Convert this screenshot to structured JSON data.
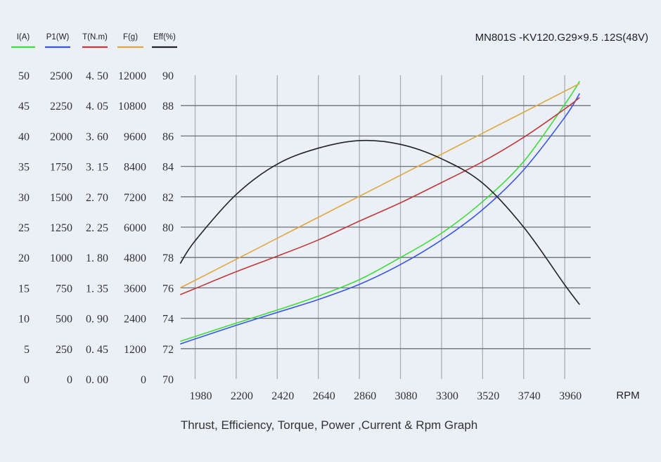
{
  "chart_data": {
    "type": "line",
    "title": "MN801S -KV120.G29×9.5 .12S(48V)",
    "subtitle": "Thrust, Efficiency, Torque, Power ,Current & Rpm Graph",
    "xlabel": "RPM",
    "x_ticks": [
      "1980",
      "2200",
      "2420",
      "2640",
      "2860",
      "3080",
      "3300",
      "3520",
      "3740",
      "3960"
    ],
    "grid": true,
    "legend_position": "top-left",
    "axes": [
      {
        "key": "I",
        "label": "I(A)",
        "range": [
          0,
          50
        ],
        "ticks": [
          "50",
          "45",
          "40",
          "35",
          "30",
          "25",
          "20",
          "15",
          "10",
          "5",
          "0"
        ]
      },
      {
        "key": "P",
        "label": "P1(W)",
        "range": [
          0,
          2500
        ],
        "ticks": [
          "2500",
          "2250",
          "2000",
          "1750",
          "1500",
          "1250",
          "1000",
          "750",
          "500",
          "250",
          "0"
        ]
      },
      {
        "key": "T",
        "label": "T(N.m)",
        "range": [
          0,
          4.5
        ],
        "ticks": [
          "4. 50",
          "4. 05",
          "3. 60",
          "3. 15",
          "2. 70",
          "2. 25",
          "1. 80",
          "1. 35",
          "0. 90",
          "0. 45",
          "0. 00"
        ]
      },
      {
        "key": "F",
        "label": "F(g)",
        "range": [
          0,
          12000
        ],
        "ticks": [
          "12000",
          "10800",
          "9600",
          "8400",
          "7200",
          "6000",
          "4800",
          "3600",
          "2400",
          "1200",
          "0"
        ]
      },
      {
        "key": "Eff",
        "label": "Eff(%)",
        "range": [
          70,
          90
        ],
        "ticks": [
          "90",
          "88",
          "86",
          "84",
          "82",
          "80",
          "78",
          "76",
          "74",
          "72",
          "70"
        ]
      }
    ],
    "x": [
      1900,
      1980,
      2200,
      2420,
      2640,
      2860,
      3080,
      3300,
      3520,
      3740,
      3960,
      4040
    ],
    "series": [
      {
        "name": "I(A)",
        "axis": "I",
        "color": "#3ddc3d",
        "values": [
          6.2,
          7.0,
          9.2,
          11.35,
          13.65,
          16.35,
          20.0,
          24.0,
          29.2,
          35.8,
          45.2,
          49.0
        ]
      },
      {
        "name": "P1(W)",
        "axis": "P",
        "color": "#3a56e6",
        "values": [
          288,
          330,
          442,
          548,
          654,
          779,
          942,
          1144,
          1394,
          1721,
          2154,
          2350
        ]
      },
      {
        "name": "T(N.m)",
        "axis": "T",
        "color": "#c0393b",
        "values": [
          1.25,
          1.34,
          1.59,
          1.82,
          2.06,
          2.34,
          2.61,
          2.91,
          3.22,
          3.58,
          4.0,
          4.17
        ]
      },
      {
        "name": "F(g)",
        "axis": "F",
        "color": "#e0a845",
        "values": [
          3600,
          3900,
          4730,
          5560,
          6390,
          7220,
          8050,
          8880,
          9710,
          10540,
          11370,
          11670
        ]
      },
      {
        "name": "Eff(%)",
        "axis": "Eff",
        "color": "#222222",
        "values": [
          77.6,
          79.1,
          82.15,
          84.15,
          85.2,
          85.7,
          85.45,
          84.5,
          82.9,
          80.0,
          76.2,
          74.9
        ]
      }
    ]
  }
}
